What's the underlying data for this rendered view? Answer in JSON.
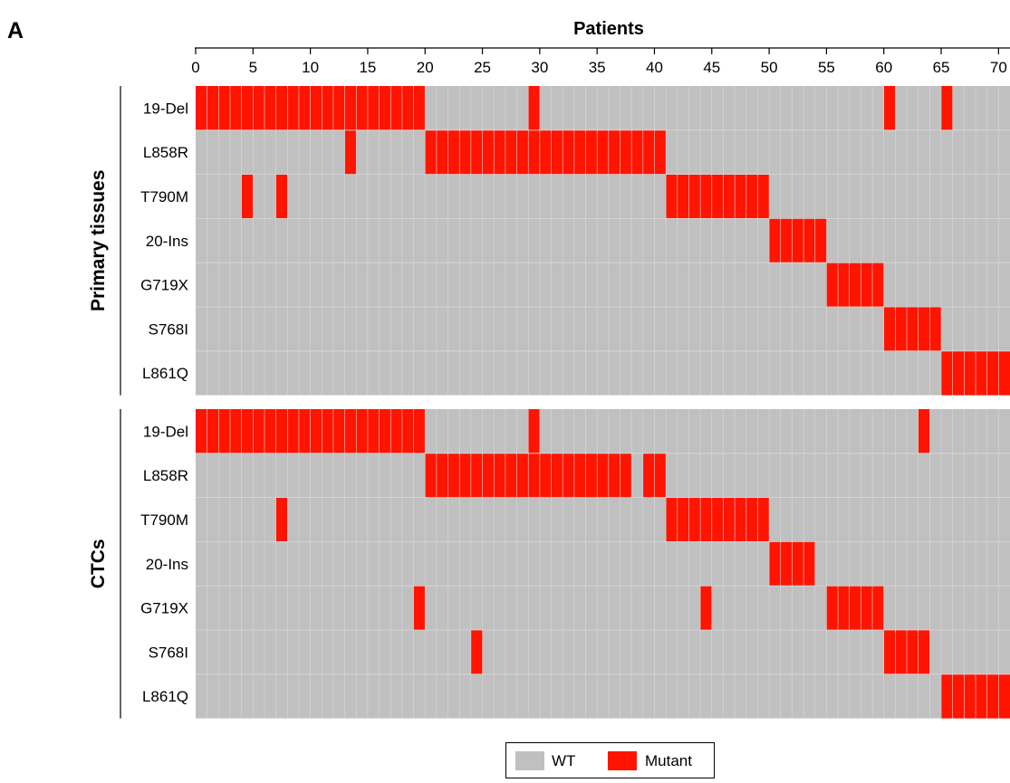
{
  "figure_label": "A",
  "colors": {
    "wt": "#c0c0c0",
    "mutant": "#ff1400",
    "grid": "#d9d9d9"
  },
  "legend": {
    "wt": "WT",
    "mutant": "Mutant"
  },
  "chart_data": {
    "type": "heatmap",
    "title": "",
    "xlabel": "Patients",
    "x_ticks": [
      0,
      5,
      10,
      15,
      20,
      25,
      30,
      35,
      40,
      45,
      50,
      55,
      60,
      65,
      70
    ],
    "xlim": [
      0,
      71
    ],
    "patients": 71,
    "categories": [
      "19-Del",
      "L858R",
      "T790M",
      "20-Ins",
      "G719X",
      "S768I",
      "L861Q"
    ],
    "panels": [
      {
        "name": "Primary tissues",
        "mutant_patients": {
          "19-Del": [
            1,
            2,
            3,
            4,
            5,
            6,
            7,
            8,
            9,
            10,
            11,
            12,
            13,
            14,
            15,
            16,
            17,
            18,
            19,
            20,
            30,
            61,
            66
          ],
          "L858R": [
            14,
            21,
            22,
            23,
            24,
            25,
            26,
            27,
            28,
            29,
            30,
            31,
            32,
            33,
            34,
            35,
            36,
            37,
            38,
            39,
            40,
            41
          ],
          "T790M": [
            5,
            8,
            42,
            43,
            44,
            45,
            46,
            47,
            48,
            49,
            50
          ],
          "20-Ins": [
            51,
            52,
            53,
            54,
            55
          ],
          "G719X": [
            56,
            57,
            58,
            59,
            60
          ],
          "S768I": [
            61,
            62,
            63,
            64,
            65
          ],
          "L861Q": [
            66,
            67,
            68,
            69,
            70,
            71
          ]
        }
      },
      {
        "name": "CTCs",
        "mutant_patients": {
          "19-Del": [
            1,
            2,
            3,
            4,
            5,
            6,
            7,
            8,
            9,
            10,
            11,
            12,
            13,
            14,
            15,
            16,
            17,
            18,
            19,
            20,
            30,
            64
          ],
          "L858R": [
            21,
            22,
            23,
            24,
            25,
            26,
            27,
            28,
            29,
            30,
            31,
            32,
            33,
            34,
            35,
            36,
            37,
            38,
            40,
            41
          ],
          "T790M": [
            8,
            42,
            43,
            44,
            45,
            46,
            47,
            48,
            49,
            50
          ],
          "20-Ins": [
            51,
            52,
            53,
            54
          ],
          "G719X": [
            20,
            45,
            56,
            57,
            58,
            59,
            60
          ],
          "S768I": [
            25,
            61,
            62,
            63,
            64
          ],
          "L861Q": [
            66,
            67,
            68,
            69,
            70,
            71
          ]
        }
      }
    ]
  }
}
